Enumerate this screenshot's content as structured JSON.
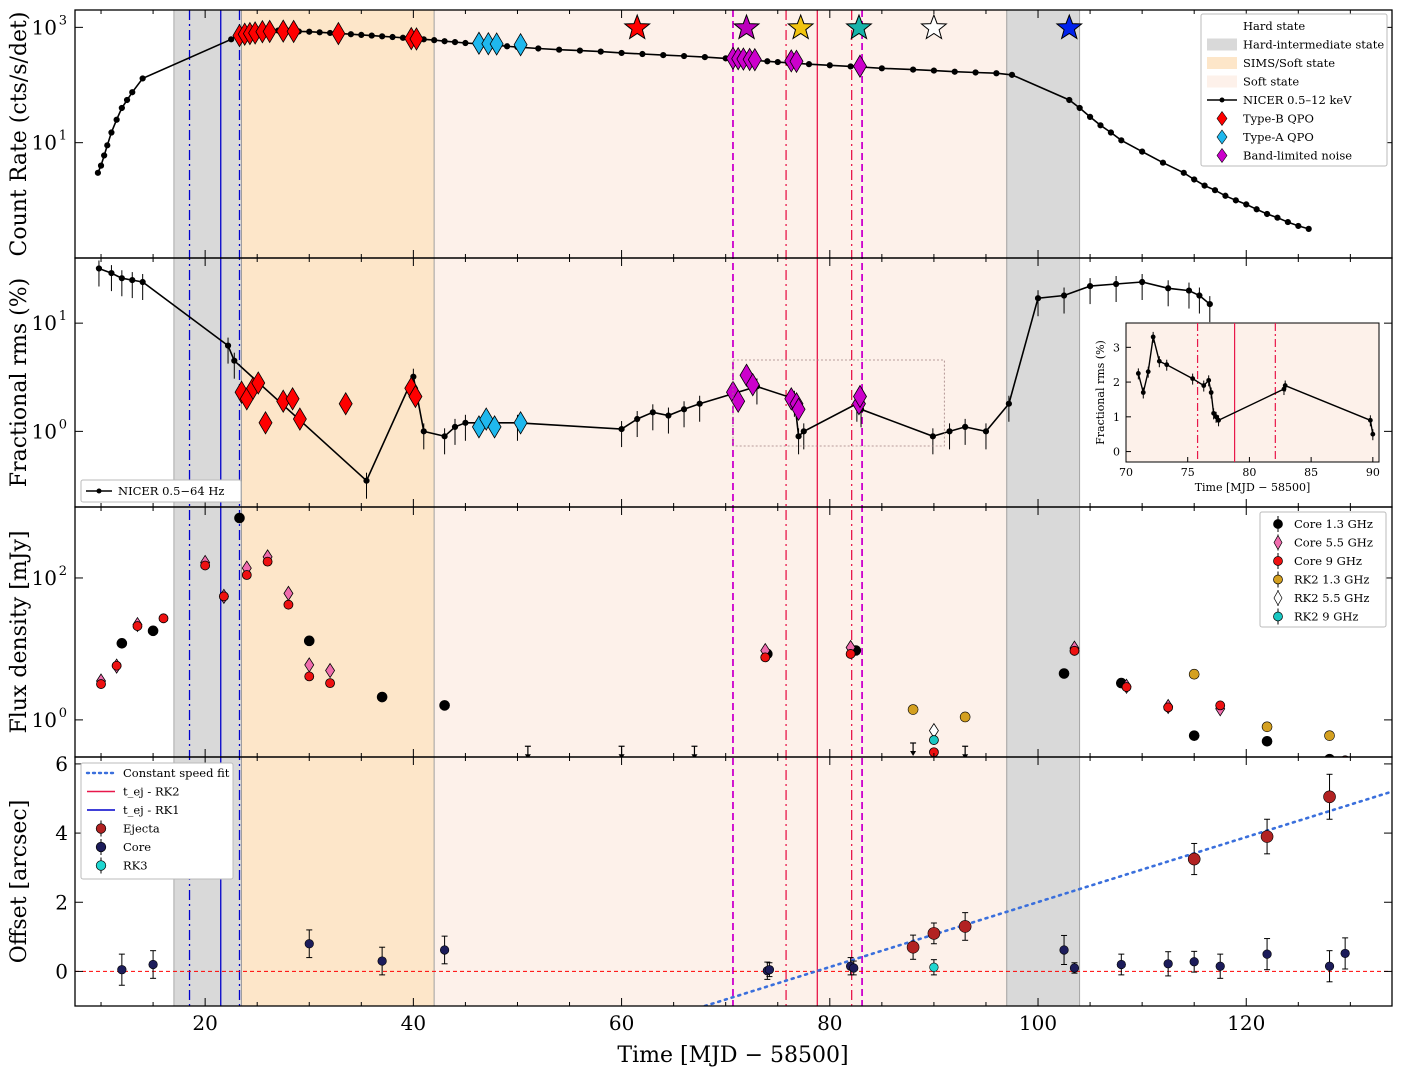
{
  "x_axis": {
    "label": "Time [MJD − 58500]",
    "ticks": [
      20,
      40,
      60,
      80,
      100,
      120
    ],
    "range": [
      7.5,
      134
    ]
  },
  "colors": {
    "hard_int": "#d9d9d9",
    "sims": "#fde6c9",
    "soft": "#fdf1ea",
    "black": "#000000",
    "red": "#ff0000",
    "cyan": "#1fb8ee",
    "magenta": "#cc00cc",
    "rk_red": "#e8174a",
    "rk_blue": "#0000cc",
    "fit": "#3a6fdc",
    "ejecta": "#b22222",
    "core": "#1c1c5a",
    "rk3": "#1fd6d0",
    "gold": "#d4a020"
  },
  "chart_data": [
    {
      "type": "line",
      "ylabel": "Count Rate (cts/s/det)",
      "yscale": "log",
      "ylim": [
        0.1,
        2000
      ],
      "y_ticks": [
        {
          "v": 10,
          "t": "10",
          "e": "1"
        },
        {
          "v": 1000,
          "t": "10",
          "e": "3"
        }
      ],
      "state_bands": [
        {
          "state": "Hard-intermediate state",
          "x": [
            17,
            23.5
          ]
        },
        {
          "state": "SIMS/Soft state",
          "x": [
            23.5,
            42
          ]
        },
        {
          "state": "Soft state",
          "x": [
            42,
            97
          ]
        },
        {
          "state": "Hard-intermediate state",
          "x": [
            97,
            104
          ]
        }
      ],
      "legend": {
        "position": "top-right",
        "entries": [
          "Hard state",
          "Hard-intermediate state",
          "SIMS/Soft state",
          "Soft state",
          "NICER 0.5–12 keV",
          "Type-B QPO",
          "Type-A QPO",
          "Band-limited noise"
        ]
      },
      "series": [
        {
          "name": "NICER 0.5–12 keV",
          "x": [
            9.7,
            10,
            10.3,
            10.6,
            11,
            11.5,
            12,
            12.5,
            13,
            14,
            22.5,
            23.2,
            24,
            25,
            26,
            27,
            28,
            29,
            30,
            31,
            32,
            33,
            34,
            35,
            36,
            37,
            38,
            39,
            40,
            41,
            42,
            43,
            44,
            45,
            46,
            47,
            48,
            49,
            50,
            52,
            54,
            56,
            58,
            60,
            62,
            64,
            66,
            68,
            70,
            71,
            72,
            73,
            74,
            75,
            76,
            77,
            78,
            80,
            82,
            83,
            85,
            88,
            90,
            92,
            94,
            96,
            97.5,
            103,
            104,
            105,
            106,
            107,
            108,
            110,
            112,
            114,
            115,
            116,
            117,
            118,
            119,
            120,
            121,
            122,
            123,
            124,
            125,
            126
          ],
          "y": [
            3,
            4,
            6,
            9,
            15,
            25,
            40,
            55,
            75,
            130,
            620,
            760,
            830,
            860,
            880,
            880,
            870,
            850,
            840,
            820,
            800,
            780,
            760,
            740,
            720,
            700,
            680,
            660,
            640,
            620,
            600,
            575,
            555,
            535,
            520,
            505,
            490,
            470,
            455,
            430,
            410,
            395,
            380,
            360,
            345,
            330,
            318,
            305,
            290,
            280,
            272,
            265,
            258,
            250,
            243,
            237,
            230,
            220,
            210,
            205,
            195,
            185,
            178,
            170,
            165,
            160,
            150,
            55,
            40,
            28,
            20,
            15,
            11,
            7,
            4.5,
            3,
            2.3,
            1.8,
            1.5,
            1.2,
            1,
            0.85,
            0.7,
            0.58,
            0.5,
            0.42,
            0.36,
            0.32
          ]
        },
        {
          "name": "Type-B QPO",
          "x": [
            23.3,
            23.8,
            24.3,
            24.8,
            25.5,
            26.2,
            27.5,
            28.5,
            32.8,
            39.8,
            40.3
          ],
          "y": [
            720,
            760,
            780,
            800,
            840,
            850,
            860,
            850,
            780,
            640,
            630
          ]
        },
        {
          "name": "Type-A QPO",
          "x": [
            46.3,
            47.2,
            48,
            50.3
          ],
          "y": [
            530,
            520,
            515,
            500
          ]
        },
        {
          "name": "Band-limited noise",
          "x": [
            70.7,
            71.2,
            71.7,
            72.3,
            72.8,
            76.3,
            76.8,
            82.9
          ],
          "y": [
            290,
            286,
            282,
            278,
            275,
            262,
            258,
            212
          ]
        }
      ],
      "stars": [
        {
          "x": 61.5,
          "color": "red"
        },
        {
          "x": 72,
          "color": "magenta"
        },
        {
          "x": 77.2,
          "color": "gold"
        },
        {
          "x": 82.8,
          "color": "teal"
        },
        {
          "x": 90,
          "color": "white"
        },
        {
          "x": 103,
          "color": "blue"
        }
      ]
    },
    {
      "type": "line",
      "ylabel": "Fractional rms (%)",
      "yscale": "log",
      "ylim": [
        0.2,
        40
      ],
      "y_ticks": [
        {
          "v": 1,
          "t": "10",
          "e": "0"
        },
        {
          "v": 10,
          "t": "10",
          "e": "1"
        }
      ],
      "legend": {
        "position": "bottom-left",
        "entries": [
          "NICER 0.5−64 Hz"
        ]
      },
      "series": [
        {
          "name": "NICER 0.5−64 Hz",
          "x": [
            9.8,
            11,
            12,
            13,
            14,
            22.2,
            22.8,
            35.5,
            40,
            41,
            43,
            44,
            45,
            50,
            60,
            61.5,
            63,
            64.5,
            66,
            67.5,
            73,
            76.6,
            77,
            77.5,
            82.6,
            83,
            89.9,
            91.5,
            93,
            95,
            97.2,
            100,
            102.5,
            105,
            107.5,
            110,
            112.5,
            114.5,
            115.5,
            116.5
          ],
          "y": [
            32,
            29,
            26,
            25,
            24,
            6.2,
            4.5,
            0.35,
            3.2,
            1,
            0.9,
            1.1,
            1.2,
            1.2,
            1.05,
            1.3,
            1.5,
            1.4,
            1.6,
            1.8,
            2.6,
            2.0,
            0.9,
            1.0,
            1.8,
            1.6,
            0.9,
            1.0,
            1.1,
            1.0,
            1.8,
            17,
            18,
            22,
            23,
            24,
            21,
            20,
            18,
            15
          ]
        },
        {
          "name": "Type-B QPO",
          "x": [
            23.5,
            24,
            24.6,
            25.1,
            25.8,
            27.5,
            28.4,
            29.1,
            33.5,
            39.8,
            40.2
          ],
          "y": [
            2.3,
            2.0,
            2.5,
            2.8,
            1.2,
            1.9,
            2.0,
            1.3,
            1.8,
            2.5,
            2.1
          ]
        },
        {
          "name": "Type-A QPO",
          "x": [
            46.3,
            47,
            47.8,
            50.3
          ],
          "y": [
            1.1,
            1.3,
            1.1,
            1.2
          ]
        },
        {
          "name": "Band-limited noise",
          "x": [
            70.7,
            71.2,
            72,
            72.6,
            76.3,
            76.8,
            77,
            82.8,
            82.9
          ],
          "y": [
            2.3,
            1.9,
            3.3,
            2.7,
            2.0,
            1.8,
            1.6,
            1.8,
            2.1
          ]
        }
      ],
      "inset": {
        "xlabel": "Time [MJD − 58500]",
        "ylabel": "Fractional rms (%)",
        "xlim": [
          70,
          90.5
        ],
        "ylim": [
          -0.3,
          3.7
        ],
        "x_ticks": [
          70,
          75,
          80,
          85,
          90
        ],
        "y_ticks": [
          0,
          1,
          2,
          3
        ],
        "x": [
          71,
          71.4,
          71.8,
          72.2,
          72.7,
          73.3,
          75.4,
          76.3,
          76.7,
          76.9,
          77.1,
          77.3,
          77.5,
          82.8,
          82.9,
          89.8,
          90
        ],
        "y": [
          2.25,
          1.7,
          2.3,
          3.3,
          2.6,
          2.5,
          2.1,
          1.9,
          2.05,
          1.7,
          1.1,
          1.0,
          0.9,
          1.8,
          1.9,
          0.9,
          0.5
        ]
      }
    },
    {
      "type": "scatter",
      "ylabel": "Flux density [mJy]",
      "yscale": "log",
      "ylim": [
        0.3,
        1000
      ],
      "y_ticks": [
        {
          "v": 1,
          "t": "10",
          "e": "0"
        },
        {
          "v": 100,
          "t": "10",
          "e": "2"
        }
      ],
      "legend": {
        "position": "top-right",
        "entries": [
          "Core 1.3 GHz",
          "Core 5.5 GHz",
          "Core 9 GHz",
          "RK2 1.3 GHz",
          "RK2 5.5 GHz",
          "RK2 9 GHz"
        ]
      },
      "series": [
        {
          "name": "Core 1.3 GHz",
          "x": [
            12,
            15,
            23.3,
            30,
            37,
            43,
            74,
            82.5,
            102.5,
            108,
            115,
            122,
            128
          ],
          "y": [
            12,
            18,
            700,
            13,
            2.1,
            1.6,
            8.5,
            9.5,
            4.5,
            3.3,
            0.6,
            0.5,
            0.28
          ]
        },
        {
          "name": "Core 5.5 GHz",
          "x": [
            10,
            11.5,
            13.5,
            20,
            21.8,
            24,
            26,
            28,
            30,
            32,
            73.8,
            82,
            103.5,
            108.5,
            112.5,
            117.5
          ],
          "y": [
            3.2,
            5.2,
            20,
            150,
            50,
            125,
            180,
            55,
            5.4,
            4.5,
            8.6,
            9.5,
            9.3,
            2.7,
            1.4,
            1.3
          ]
        },
        {
          "name": "Core 9 GHz",
          "x": [
            10,
            11.5,
            13.5,
            16,
            20,
            21.8,
            24,
            26,
            28,
            30,
            32,
            73.8,
            82,
            90,
            103.5,
            108.5,
            112.5,
            117.5,
            129.5
          ],
          "y": [
            3.2,
            5.8,
            21,
            27,
            150,
            55,
            110,
            170,
            42,
            4.1,
            3.3,
            7.6,
            8.5,
            0.35,
            9.4,
            2.9,
            1.5,
            1.6,
            0.27
          ]
        },
        {
          "name": "RK2 1.3 GHz",
          "x": [
            88,
            93,
            115,
            122,
            128
          ],
          "y": [
            1.4,
            1.1,
            4.4,
            0.8,
            0.6
          ]
        },
        {
          "name": "RK2 5.5 GHz",
          "x": [
            90
          ],
          "y": [
            0.64
          ]
        },
        {
          "name": "RK2 9 GHz",
          "x": [
            90
          ],
          "y": [
            0.52
          ]
        }
      ],
      "upper_limits": {
        "x": [
          51,
          60,
          67,
          88,
          93
        ],
        "y": [
          0.27,
          0.27,
          0.27,
          0.3,
          0.27
        ]
      }
    },
    {
      "type": "scatter",
      "ylabel": "Offset [arcsec]",
      "ylim": [
        -1,
        6.2
      ],
      "y_ticks": [
        0,
        2,
        4,
        6
      ],
      "legend": {
        "position": "top-left",
        "entries": [
          "Constant speed fit",
          "t_ej - RK2",
          "t_ej - RK1",
          "Ejecta",
          "Core",
          "RK3"
        ]
      },
      "series": [
        {
          "name": "Ejecta",
          "x": [
            88,
            90,
            93,
            115,
            122,
            128
          ],
          "y": [
            0.7,
            1.1,
            1.3,
            3.25,
            3.9,
            5.05
          ],
          "yerr": [
            0.35,
            0.3,
            0.4,
            0.45,
            0.5,
            0.65
          ]
        },
        {
          "name": "Core",
          "x": [
            12,
            15,
            30,
            37,
            43,
            74,
            74.2,
            82,
            82.3,
            102.5,
            103.5,
            108,
            112.5,
            115,
            117.5,
            122,
            128,
            129.5
          ],
          "y": [
            0.05,
            0.2,
            0.8,
            0.3,
            0.62,
            0.02,
            0.05,
            0.15,
            0.1,
            0.62,
            0.1,
            0.2,
            0.22,
            0.28,
            0.15,
            0.5,
            0.15,
            0.52
          ],
          "yerr": [
            0.45,
            0.4,
            0.4,
            0.4,
            0.4,
            0.25,
            0.2,
            0.25,
            0.2,
            0.42,
            0.15,
            0.3,
            0.35,
            0.3,
            0.35,
            0.45,
            0.45,
            0.45
          ]
        },
        {
          "name": "RK3",
          "x": [
            90
          ],
          "y": [
            0.12
          ],
          "yerr": [
            0.22
          ]
        }
      ],
      "fit": {
        "name": "Constant speed fit",
        "x": [
          68,
          134
        ],
        "y": [
          -1.0,
          5.2
        ]
      },
      "zero_line": 0
    }
  ],
  "vertical_lines": [
    {
      "x": 18.5,
      "style": "dashdot",
      "color": "blue"
    },
    {
      "x": 21.5,
      "style": "solid",
      "color": "blue"
    },
    {
      "x": 23.3,
      "style": "dashdot",
      "color": "blue"
    },
    {
      "x": 70.7,
      "style": "dashed",
      "color": "magenta"
    },
    {
      "x": 75.8,
      "style": "dashdot",
      "color": "red"
    },
    {
      "x": 78.8,
      "style": "solid",
      "color": "red"
    },
    {
      "x": 82.1,
      "style": "dashdot",
      "color": "red"
    },
    {
      "x": 83.1,
      "style": "dashed",
      "color": "magenta"
    }
  ]
}
